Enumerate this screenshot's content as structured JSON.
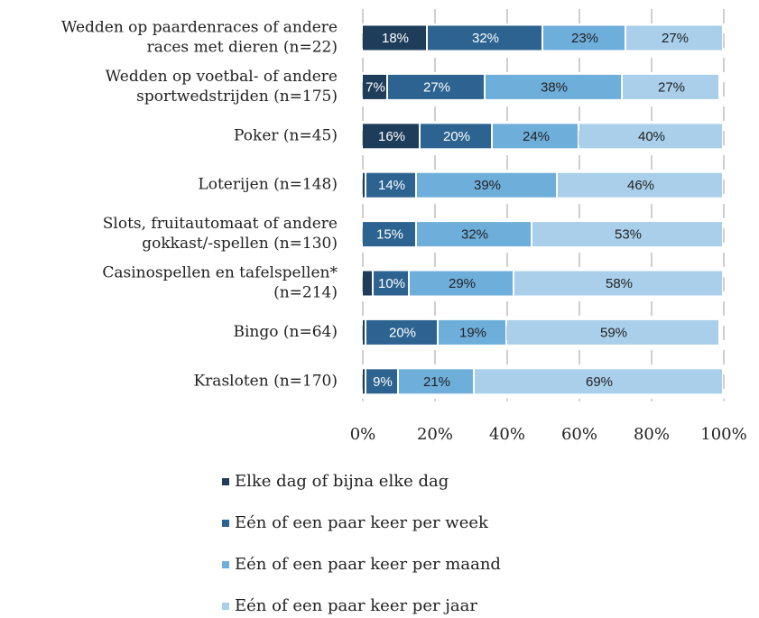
{
  "chart_data": {
    "type": "stacked_barh",
    "categories": [
      [
        "Wedden op paardenraces of andere",
        "races met dieren (n=22)"
      ],
      [
        "Wedden op voetbal- of andere",
        "sportwedstrijden (n=175)"
      ],
      [
        "Poker (n=45)"
      ],
      [
        "Loterijen (n=148)"
      ],
      [
        "Slots, fruitautomaat of andere",
        "gokkast/-spellen (n=130)"
      ],
      [
        "Casinospellen en tafelspellen*",
        "(n=214)"
      ],
      [
        "Bingo (n=64)"
      ],
      [
        "Krasloten (n=170)"
      ]
    ],
    "series": [
      {
        "name": "Elke dag of bijna elke dag",
        "color": "#1e3d5a",
        "values": [
          18,
          7,
          16,
          1,
          0,
          3,
          1,
          1
        ],
        "value_labels": [
          "18%",
          "7%",
          "16%",
          null,
          null,
          null,
          null,
          null
        ]
      },
      {
        "name": "Eén of een paar keer per week",
        "color": "#2c6390",
        "values": [
          32,
          27,
          20,
          14,
          15,
          10,
          20,
          9
        ],
        "value_labels": [
          "32%",
          "27%",
          "20%",
          "14%",
          "15%",
          "10%",
          "20%",
          "9%"
        ]
      },
      {
        "name": "Eén of een paar keer per maand",
        "color": "#6eaedb",
        "values": [
          23,
          38,
          24,
          39,
          32,
          29,
          19,
          21
        ],
        "value_labels": [
          "23%",
          "38%",
          "24%",
          "39%",
          "32%",
          "29%",
          "19%",
          "21%"
        ]
      },
      {
        "name": "Eén of een paar keer per jaar",
        "color": "#a9cfea",
        "values": [
          27,
          27,
          40,
          46,
          53,
          58,
          59,
          69
        ],
        "value_labels": [
          "27%",
          "27%",
          "40%",
          "46%",
          "53%",
          "58%",
          "59%",
          "69%"
        ]
      }
    ],
    "xlim": [
      0,
      100
    ],
    "xticks": [
      {
        "value": 0,
        "label": "0%"
      },
      {
        "value": 20,
        "label": "20%"
      },
      {
        "value": 40,
        "label": "40%"
      },
      {
        "value": 60,
        "label": "60%"
      },
      {
        "value": 80,
        "label": "80%"
      },
      {
        "value": 100,
        "label": "100%"
      }
    ],
    "grid": true
  }
}
